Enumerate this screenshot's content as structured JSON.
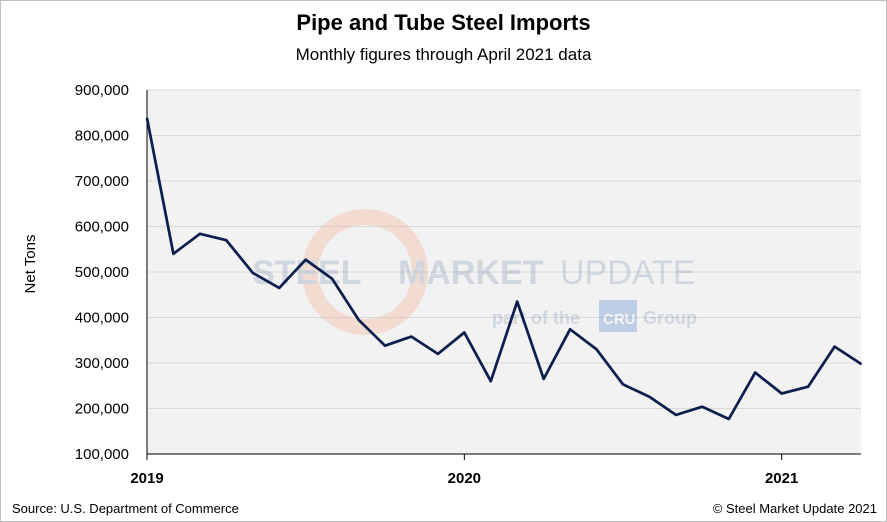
{
  "chart_data": {
    "type": "line",
    "title": "Pipe and Tube Steel Imports",
    "subtitle": "Monthly figures through April 2021 data",
    "xlabel": "",
    "ylabel": "Net Tons",
    "ylim": [
      100000,
      900000
    ],
    "y_ticks": [
      "900,000",
      "800,000",
      "700,000",
      "600,000",
      "500,000",
      "400,000",
      "300,000",
      "200,000",
      "100,000"
    ],
    "x_ticks": [
      "2019",
      "2020",
      "2021"
    ],
    "grid": true,
    "legend": "none",
    "series": [
      {
        "color": "#0d1f4f",
        "x": [
          "2019-01",
          "2019-02",
          "2019-03",
          "2019-04",
          "2019-05",
          "2019-06",
          "2019-07",
          "2019-08",
          "2019-09",
          "2019-10",
          "2019-11",
          "2019-12",
          "2020-01",
          "2020-02",
          "2020-03",
          "2020-04",
          "2020-05",
          "2020-06",
          "2020-07",
          "2020-08",
          "2020-09",
          "2020-10",
          "2020-11",
          "2020-12",
          "2021-01",
          "2021-02",
          "2021-03",
          "2021-04"
        ],
        "values": [
          838000,
          540000,
          584000,
          570000,
          498000,
          465000,
          527000,
          485000,
          395000,
          338000,
          358000,
          320000,
          367000,
          260000,
          435000,
          265000,
          374000,
          330000,
          253000,
          226000,
          186000,
          204000,
          177000,
          279000,
          233000,
          248000,
          336000,
          298000
        ]
      }
    ]
  },
  "watermark": {
    "line1a": "STEEL",
    "line1b": "MARKET",
    "line1c": "UPDATE",
    "line2a": "part of the",
    "logo": "CRU",
    "line2b": "Group"
  },
  "footer": {
    "source": "Source: U.S. Department of Commerce",
    "copyright": "© Steel Market Update 2021"
  },
  "colors": {
    "plot_bg": "#f2f2f2",
    "grid": "#d9d9d9",
    "line": "#0d1f4f"
  }
}
